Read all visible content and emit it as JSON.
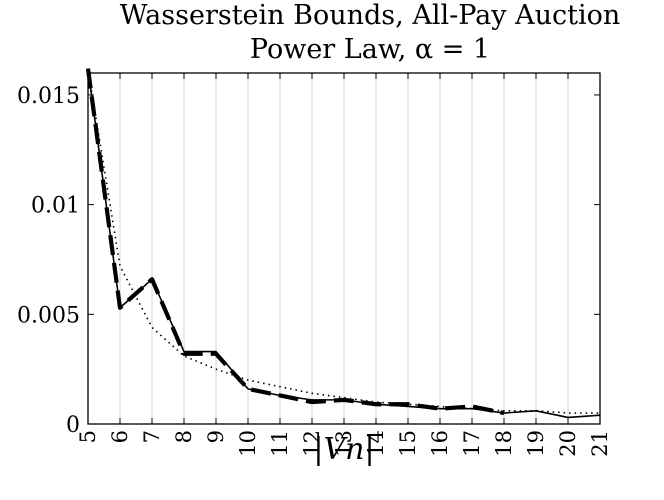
{
  "chart_data": {
    "type": "line",
    "title_line1": "Wasserstein Bounds, All-Pay Auction",
    "title_line2": "Power Law, α = 1",
    "xlabel": "|V_n|",
    "xlabel_display": "|Vn|",
    "ylabel": "",
    "xlim": [
      5,
      21
    ],
    "ylim": [
      0,
      0.016
    ],
    "xticks": [
      5,
      6,
      7,
      8,
      9,
      10,
      11,
      12,
      13,
      14,
      15,
      16,
      17,
      18,
      19,
      20,
      21
    ],
    "yticks": [
      0,
      0.005,
      0.01,
      0.015
    ],
    "ytick_labels": [
      "0",
      "0.005",
      "0.01",
      "0.015"
    ],
    "grid": "vertical",
    "legend": "none",
    "x": [
      5,
      6,
      7,
      8,
      9,
      10,
      11,
      12,
      13,
      14,
      15,
      16,
      17,
      18,
      19,
      20,
      21
    ],
    "series": [
      {
        "style": "solid",
        "values": [
          0.0162,
          0.0053,
          0.0066,
          0.0033,
          0.0033,
          0.0016,
          0.0013,
          0.0011,
          0.0011,
          0.0009,
          0.0008,
          0.0007,
          0.0007,
          0.0005,
          0.0006,
          0.0003,
          0.0004
        ]
      },
      {
        "style": "dashed",
        "values": [
          0.0162,
          0.0053,
          0.0066,
          0.0032,
          0.0032,
          0.0016,
          0.0013,
          0.001,
          0.0011,
          0.0009,
          0.0009,
          0.0007,
          0.0008,
          0.0005,
          null,
          null,
          null
        ]
      },
      {
        "style": "dotted",
        "values": [
          0.0162,
          0.0072,
          0.0044,
          0.0031,
          0.0025,
          0.002,
          0.0017,
          0.0014,
          0.0012,
          0.001,
          0.0009,
          0.0008,
          0.0007,
          0.0006,
          0.0006,
          0.0005,
          0.0005
        ]
      }
    ]
  }
}
